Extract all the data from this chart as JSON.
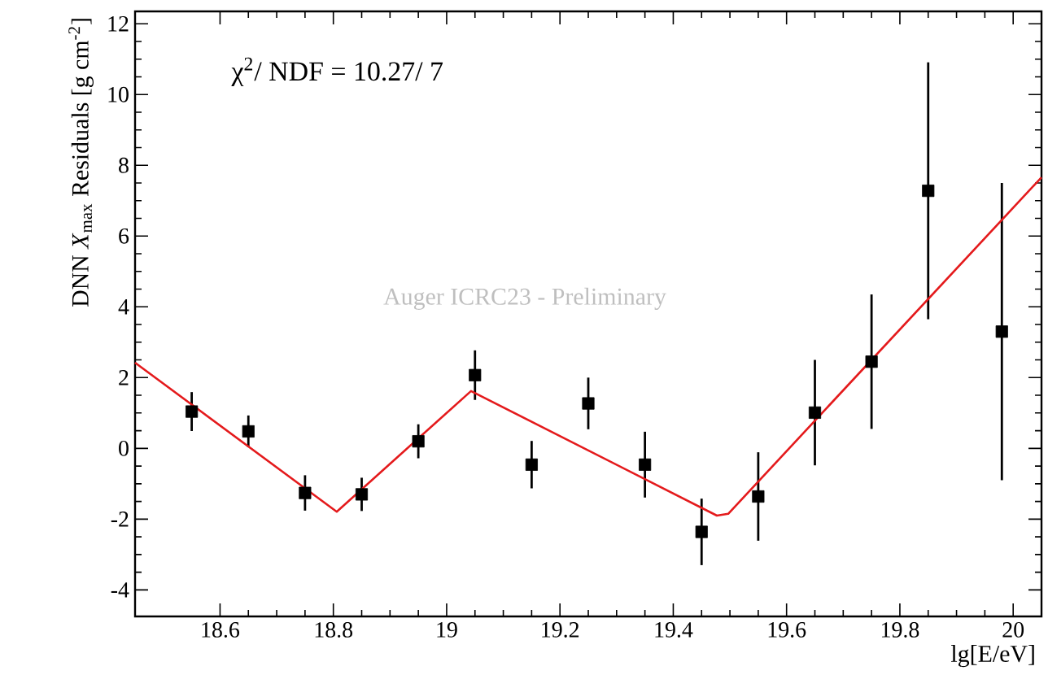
{
  "chart_data": {
    "type": "scatter",
    "xlabel": "lg[E/eV]",
    "ylabel": "DNN *X*$_{max}$ Residuals [g cm$^{-2}$]",
    "annotations": [
      "χ$^{2}$/ NDF = 10.27/ 7",
      "Auger ICRC23 - Preliminary"
    ],
    "xlim": [
      18.45,
      20.05
    ],
    "ylim": [
      -4.75,
      12.35
    ],
    "xticks": [
      18.6,
      18.8,
      19,
      19.2,
      19.4,
      19.6,
      19.8,
      20
    ],
    "yticks": [
      -4,
      -2,
      0,
      2,
      4,
      6,
      8,
      10,
      12
    ],
    "grid": false,
    "marker": "square",
    "series": [
      {
        "color": "#000000",
        "x": [
          18.55,
          18.65,
          18.75,
          18.85,
          18.95,
          19.05,
          19.15,
          19.25,
          19.35,
          19.45,
          19.55,
          19.65,
          19.75,
          19.85,
          19.98
        ],
        "values": [
          1.04,
          0.48,
          -1.26,
          -1.3,
          0.2,
          2.07,
          -0.46,
          1.27,
          -0.46,
          -2.36,
          -1.36,
          1.01,
          2.45,
          7.28,
          3.3
        ],
        "errors": [
          0.55,
          0.45,
          0.5,
          0.47,
          0.48,
          0.7,
          0.67,
          0.73,
          0.93,
          0.94,
          1.25,
          1.49,
          1.9,
          3.63,
          4.2
        ]
      },
      {
        "type": "line",
        "color": "#e41a1c",
        "marker": "none",
        "x": [
          18.45,
          18.806,
          19.043,
          19.477,
          19.497,
          20.05
        ],
        "values": [
          2.42,
          -1.79,
          1.62,
          -1.9,
          -1.85,
          7.66
        ]
      }
    ]
  }
}
